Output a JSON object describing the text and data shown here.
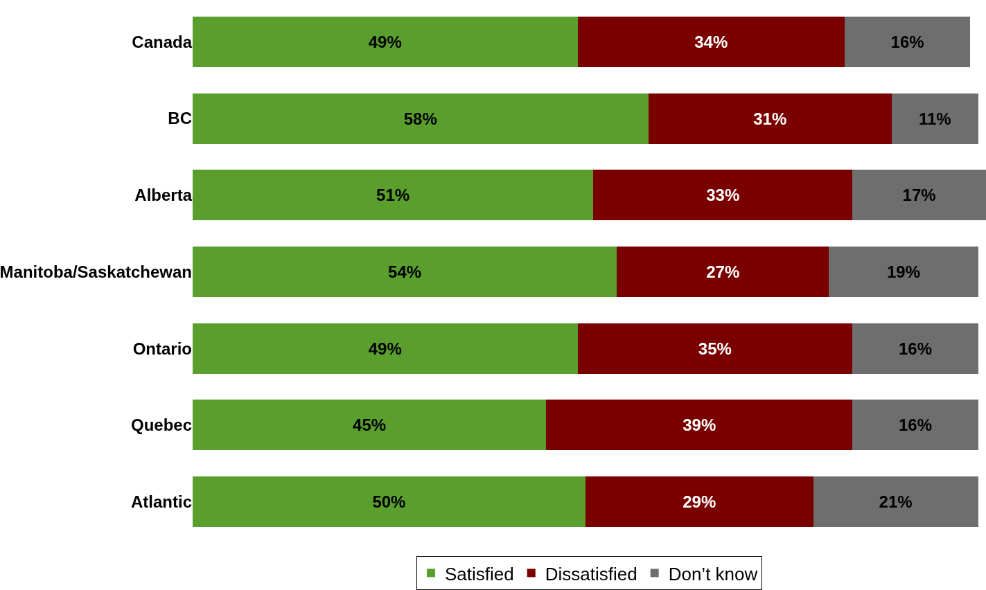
{
  "chart_data": {
    "type": "bar",
    "orientation": "horizontal",
    "stacked": true,
    "categories": [
      "Canada",
      "BC",
      "Alberta",
      "Manitoba/Saskatchewan",
      "Ontario",
      "Quebec",
      "Atlantic"
    ],
    "series": [
      {
        "name": "Satisfied",
        "color": "#5a9e2e",
        "values": [
          49,
          58,
          51,
          54,
          49,
          45,
          50
        ],
        "value_labels": [
          "49%",
          "58%",
          "51%",
          "54%",
          "49%",
          "45%",
          "50%"
        ]
      },
      {
        "name": "Dissatisfied",
        "color": "#7a0000",
        "values": [
          34,
          31,
          33,
          27,
          35,
          39,
          29
        ],
        "value_labels": [
          "34%",
          "31%",
          "33%",
          "27%",
          "35%",
          "39%",
          "29%"
        ]
      },
      {
        "name": "Don’t know",
        "color": "#6e6e6e",
        "values": [
          16,
          11,
          17,
          19,
          16,
          16,
          21
        ],
        "value_labels": [
          "16%",
          "11%",
          "17%",
          "19%",
          "16%",
          "16%",
          "21%"
        ]
      }
    ],
    "legend": "bottom",
    "tick_labels": "y"
  }
}
